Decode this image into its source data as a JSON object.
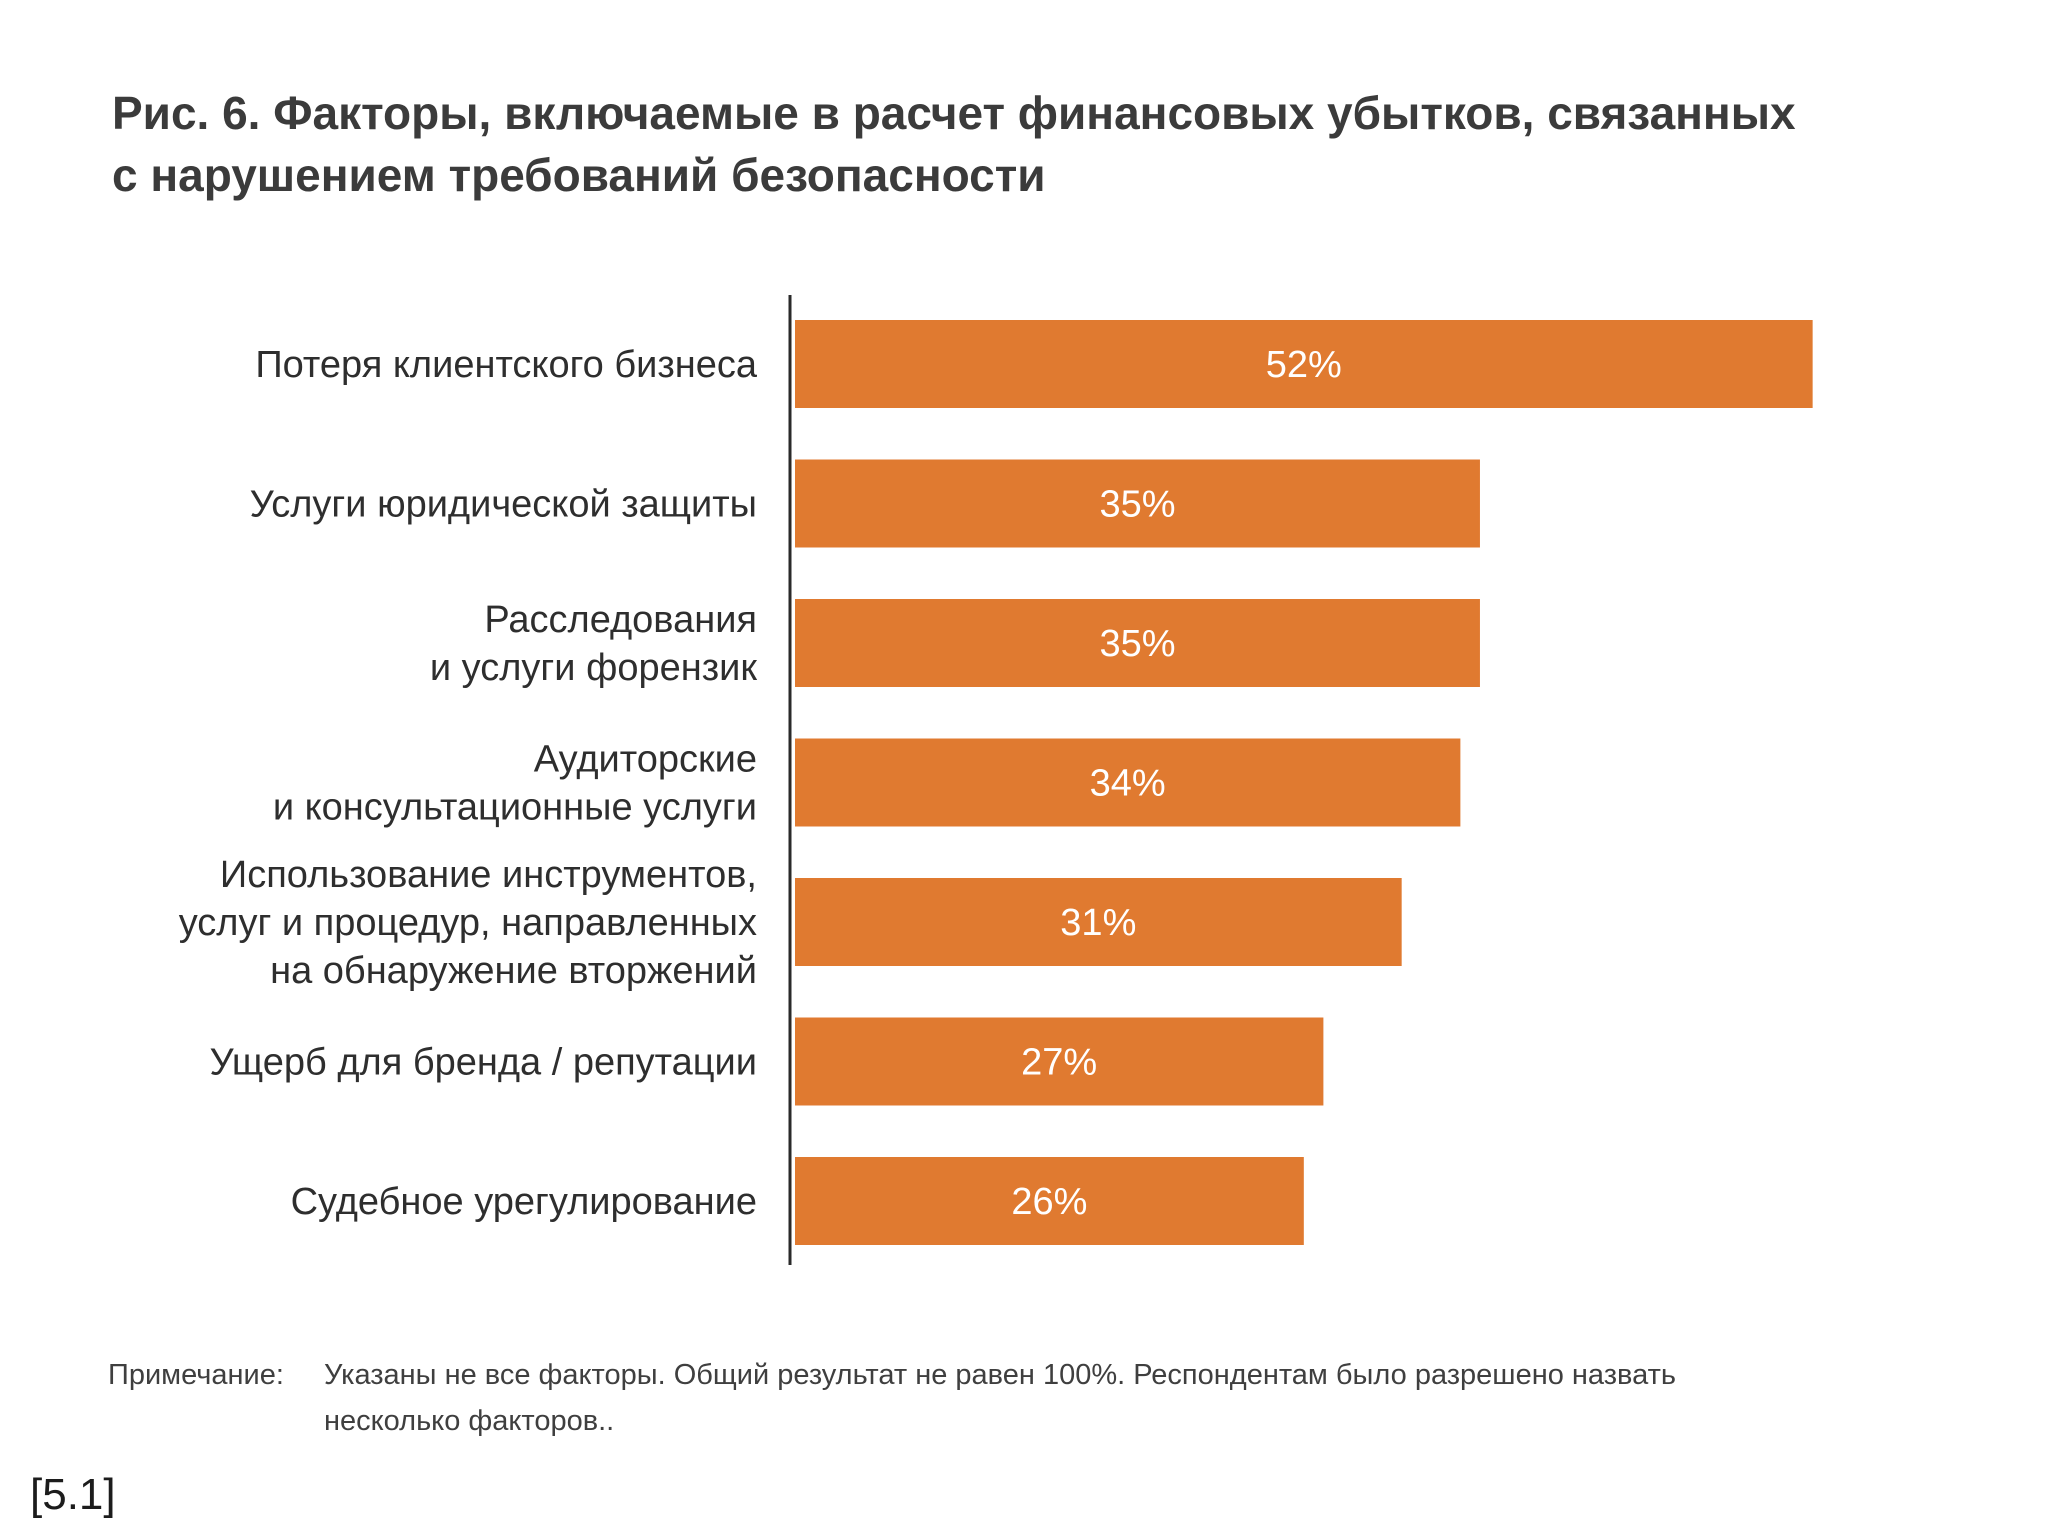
{
  "title": {
    "lines": [
      "Рис. 6. Факторы, включаемые в расчет финансовых убытков, связанных",
      "с нарушением требований безопасности"
    ]
  },
  "chart_data": {
    "type": "bar",
    "orientation": "horizontal",
    "categories": [
      [
        "Потеря клиентского бизнеса"
      ],
      [
        "Услуги юридической защиты"
      ],
      [
        "Расследования",
        "и услуги форензик"
      ],
      [
        "Аудиторские",
        "и консультационные услуги"
      ],
      [
        "Использование инструментов,",
        "услуг и процедур, направленных",
        "на обнаружение вторжений"
      ],
      [
        "Ущерб для бренда / репутации"
      ],
      [
        "Судебное урегулирование"
      ]
    ],
    "values": [
      52,
      35,
      35,
      34,
      31,
      27,
      26
    ],
    "value_labels": [
      "52%",
      "35%",
      "35%",
      "34%",
      "31%",
      "27%",
      "26%"
    ],
    "unit": "%",
    "xlim": [
      0,
      100
    ],
    "bar_color": "#e07a30",
    "grid": false,
    "legend": "none"
  },
  "note": {
    "prefix": "Примечание:",
    "line1": "Указаны не все факторы. Общий результат не равен 100%. Респондентам было разрешено назвать",
    "line2": "несколько факторов.."
  },
  "footnote": "[5.1]"
}
